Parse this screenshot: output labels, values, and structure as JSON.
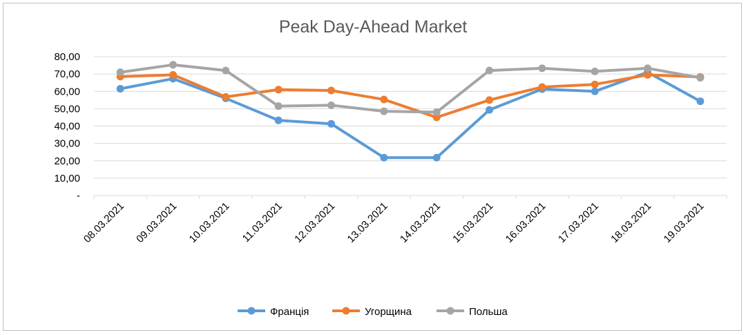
{
  "chart_data": {
    "type": "line",
    "title": "Peak Day-Ahead Market",
    "xlabel": "",
    "ylabel": "",
    "ylim": [
      0,
      80
    ],
    "y_ticks": [
      "-",
      "10,00",
      "20,00",
      "30,00",
      "40,00",
      "50,00",
      "60,00",
      "70,00",
      "80,00"
    ],
    "categories": [
      "08.03.2021",
      "09.03.2021",
      "10.03.2021",
      "11.03.2021",
      "12.03.2021",
      "13.03.2021",
      "14.03.2021",
      "15.03.2021",
      "16.03.2021",
      "17.03.2021",
      "18.03.2021",
      "19.03.2021"
    ],
    "grid": true,
    "legend_position": "bottom",
    "series": [
      {
        "name": "Франція",
        "color": "#5b9bd5",
        "values": [
          61.5,
          67.3,
          56.0,
          43.3,
          41.3,
          21.8,
          21.8,
          49.3,
          61.3,
          60.0,
          71.0,
          54.3
        ]
      },
      {
        "name": "Угорщина",
        "color": "#ed7d31",
        "values": [
          68.5,
          69.5,
          56.8,
          61.0,
          60.5,
          55.3,
          45.0,
          55.0,
          62.5,
          64.0,
          69.5,
          68.3
        ]
      },
      {
        "name": "Польша",
        "color": "#a5a5a5",
        "values": [
          71.0,
          75.3,
          72.0,
          51.5,
          52.0,
          48.5,
          48.0,
          72.0,
          73.3,
          71.5,
          73.3,
          67.8
        ]
      }
    ]
  }
}
